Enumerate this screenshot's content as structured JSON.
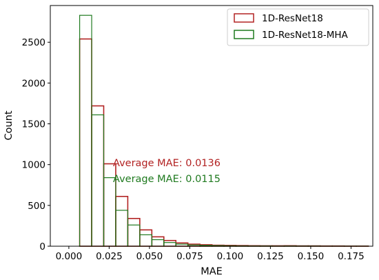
{
  "chart_data": {
    "type": "bar",
    "subtype": "overlaid step histogram",
    "xlabel": "MAE",
    "ylabel": "Count",
    "xlim": [
      -0.0115,
      0.1885
    ],
    "ylim": [
      0,
      2950
    ],
    "xticks": [
      0.0,
      0.025,
      0.05,
      0.075,
      0.1,
      0.125,
      0.15,
      0.175
    ],
    "xtick_labels": [
      "0.000",
      "0.025",
      "0.050",
      "0.075",
      "0.100",
      "0.125",
      "0.150",
      "0.175"
    ],
    "yticks": [
      0,
      500,
      1000,
      1500,
      2000,
      2500
    ],
    "ytick_labels": [
      "0",
      "500",
      "1000",
      "1500",
      "2000",
      "2500"
    ],
    "bin_width": 0.00746,
    "bin_edges_start": 0.0067,
    "grid": false,
    "legend_position": "top-right",
    "series": [
      {
        "name": "1D-ResNet18",
        "color": "#b22222",
        "values": [
          2540,
          1720,
          1010,
          610,
          340,
          200,
          115,
          70,
          40,
          25,
          18,
          12,
          10,
          8,
          6,
          5,
          5,
          6,
          4,
          4,
          3,
          3,
          2,
          2
        ]
      },
      {
        "name": "1D-ResNet18-MHA",
        "color": "#1f7a1f",
        "values": [
          2830,
          1610,
          840,
          440,
          260,
          140,
          80,
          45,
          25,
          15,
          10,
          7,
          5,
          4,
          3,
          3,
          2,
          3,
          2,
          2,
          1,
          1,
          1,
          1
        ]
      }
    ],
    "annotations": [
      {
        "text": "Average MAE: 0.0136",
        "color": "#b22222"
      },
      {
        "text": "Average MAE: 0.0115",
        "color": "#1f7a1f"
      }
    ]
  }
}
